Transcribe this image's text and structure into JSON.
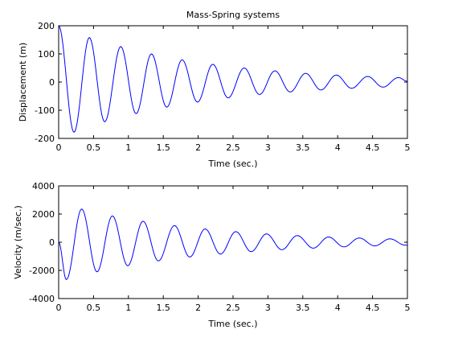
{
  "chart_data": [
    {
      "type": "line",
      "title": "Mass-Spring systems",
      "xlabel": "Time (sec.)",
      "ylabel": "Displacement (m)",
      "xlim": [
        0,
        5
      ],
      "ylim": [
        -200,
        200
      ],
      "xticks": [
        "0",
        "0.5",
        "1",
        "1.5",
        "2",
        "2.5",
        "3",
        "3.5",
        "4",
        "4.5",
        "5"
      ],
      "yticks": [
        "-200",
        "-100",
        "0",
        "100",
        "200"
      ],
      "grid": false,
      "color": "#0000ff",
      "series": [
        {
          "x": [
            0.0,
            0.22,
            0.44,
            0.66,
            0.89,
            1.11,
            1.33,
            1.55,
            1.77,
            1.99,
            2.21,
            2.43,
            2.66,
            2.88,
            3.1,
            3.32,
            3.54,
            3.76,
            3.98,
            4.2,
            4.43,
            4.65,
            4.87,
            5.0
          ],
          "y": [
            200,
            -178,
            158,
            -141,
            126,
            -112,
            100,
            -89,
            79,
            -71,
            63,
            -56,
            50,
            -44,
            40,
            -35,
            31,
            -28,
            25,
            -22,
            20,
            -18,
            16,
            3
          ]
        }
      ]
    },
    {
      "type": "line",
      "title": "",
      "xlabel": "Time (sec.)",
      "ylabel": "Velocity (m/sec.)",
      "xlim": [
        0,
        5
      ],
      "ylim": [
        -4000,
        4000
      ],
      "xticks": [
        "0",
        "0.5",
        "1",
        "1.5",
        "2",
        "2.5",
        "3",
        "3.5",
        "4",
        "4.5",
        "5"
      ],
      "yticks": [
        "-4000",
        "-2000",
        "0",
        "2000",
        "4000"
      ],
      "grid": false,
      "color": "#0000ff",
      "series": [
        {
          "x": [
            0.0,
            0.11,
            0.33,
            0.55,
            0.77,
            0.99,
            1.21,
            1.43,
            1.66,
            1.88,
            2.1,
            2.32,
            2.54,
            2.76,
            2.98,
            3.2,
            3.42,
            3.65,
            3.87,
            4.09,
            4.31,
            4.53,
            4.75,
            4.97,
            5.0
          ],
          "y": [
            0,
            -2650,
            2360,
            -2100,
            1870,
            -1670,
            1490,
            -1330,
            1180,
            -1050,
            940,
            -840,
            750,
            -670,
            590,
            -530,
            470,
            -420,
            370,
            -330,
            300,
            -260,
            240,
            -210,
            -200
          ]
        }
      ]
    }
  ]
}
